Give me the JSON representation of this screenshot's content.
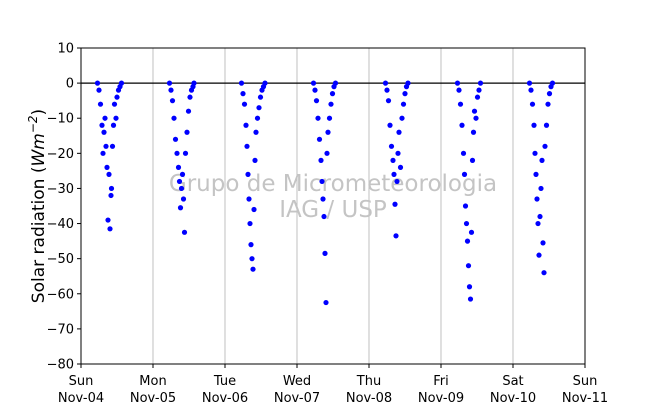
{
  "chart_data": {
    "type": "scatter",
    "ylabel_prefix": "Solar radiation (",
    "ylabel_unit_base": "Wm",
    "ylabel_unit_exp": "−2",
    "ylabel_suffix": ")",
    "watermark": [
      "Grupo de Micrometeorologia",
      "IAG / USP"
    ],
    "ylim": [
      -80,
      10
    ],
    "y_ticks": [
      10,
      0,
      -10,
      -20,
      -30,
      -40,
      -50,
      -60,
      -70,
      -80
    ],
    "y_tick_labels": [
      "10",
      "0",
      "−10",
      "−20",
      "−30",
      "−40",
      "−50",
      "−60",
      "−70",
      "−80"
    ],
    "xlim": [
      "2018-11-04",
      "2018-11-11"
    ],
    "x_ticks": [
      {
        "day": "Sun",
        "date": "Nov-04"
      },
      {
        "day": "Mon",
        "date": "Nov-05"
      },
      {
        "day": "Tue",
        "date": "Nov-06"
      },
      {
        "day": "Wed",
        "date": "Nov-07"
      },
      {
        "day": "Thu",
        "date": "Nov-08"
      },
      {
        "day": "Fri",
        "date": "Nov-09"
      },
      {
        "day": "Sat",
        "date": "Nov-10"
      },
      {
        "day": "Sun",
        "date": "Nov-11"
      }
    ],
    "x_grid": true,
    "zero_line": true,
    "marker_color": "#0000ff",
    "series": [
      {
        "points": [
          {
            "x": "2018-11-04 05:30",
            "y": 0
          },
          {
            "x": "2018-11-04 06:00",
            "y": -2
          },
          {
            "x": "2018-11-04 06:30",
            "y": -6
          },
          {
            "x": "2018-11-04 07:00",
            "y": -12
          },
          {
            "x": "2018-11-04 07:20",
            "y": -20
          },
          {
            "x": "2018-11-04 07:40",
            "y": -14
          },
          {
            "x": "2018-11-04 08:00",
            "y": -10
          },
          {
            "x": "2018-11-04 08:20",
            "y": -18
          },
          {
            "x": "2018-11-04 08:40",
            "y": -24
          },
          {
            "x": "2018-11-04 09:00",
            "y": -39
          },
          {
            "x": "2018-11-04 09:20",
            "y": -26
          },
          {
            "x": "2018-11-04 09:40",
            "y": -41.5
          },
          {
            "x": "2018-11-04 10:00",
            "y": -32
          },
          {
            "x": "2018-11-04 10:10",
            "y": -30
          },
          {
            "x": "2018-11-04 10:30",
            "y": -18
          },
          {
            "x": "2018-11-04 10:50",
            "y": -12
          },
          {
            "x": "2018-11-04 11:10",
            "y": -6
          },
          {
            "x": "2018-11-04 11:40",
            "y": -10
          },
          {
            "x": "2018-11-04 12:00",
            "y": -4
          },
          {
            "x": "2018-11-04 12:30",
            "y": -2
          },
          {
            "x": "2018-11-04 13:00",
            "y": -1
          },
          {
            "x": "2018-11-04 13:30",
            "y": 0
          },
          {
            "x": "2018-11-05 05:30",
            "y": 0
          },
          {
            "x": "2018-11-05 06:00",
            "y": -2
          },
          {
            "x": "2018-11-05 06:30",
            "y": -5
          },
          {
            "x": "2018-11-05 07:00",
            "y": -10
          },
          {
            "x": "2018-11-05 07:30",
            "y": -16
          },
          {
            "x": "2018-11-05 08:00",
            "y": -20
          },
          {
            "x": "2018-11-05 08:30",
            "y": -24
          },
          {
            "x": "2018-11-05 08:50",
            "y": -28
          },
          {
            "x": "2018-11-05 09:10",
            "y": -35.5
          },
          {
            "x": "2018-11-05 09:30",
            "y": -30
          },
          {
            "x": "2018-11-05 09:50",
            "y": -26
          },
          {
            "x": "2018-11-05 10:10",
            "y": -33
          },
          {
            "x": "2018-11-05 10:30",
            "y": -42.5
          },
          {
            "x": "2018-11-05 10:50",
            "y": -20
          },
          {
            "x": "2018-11-05 11:20",
            "y": -14
          },
          {
            "x": "2018-11-05 11:50",
            "y": -8
          },
          {
            "x": "2018-11-05 12:20",
            "y": -4
          },
          {
            "x": "2018-11-05 12:50",
            "y": -2
          },
          {
            "x": "2018-11-05 13:20",
            "y": -1
          },
          {
            "x": "2018-11-05 13:40",
            "y": 0
          },
          {
            "x": "2018-11-06 05:30",
            "y": 0
          },
          {
            "x": "2018-11-06 06:00",
            "y": -3
          },
          {
            "x": "2018-11-06 06:30",
            "y": -6
          },
          {
            "x": "2018-11-06 07:00",
            "y": -12
          },
          {
            "x": "2018-11-06 07:20",
            "y": -18
          },
          {
            "x": "2018-11-06 07:40",
            "y": -26
          },
          {
            "x": "2018-11-06 08:00",
            "y": -33
          },
          {
            "x": "2018-11-06 08:20",
            "y": -40
          },
          {
            "x": "2018-11-06 08:40",
            "y": -46
          },
          {
            "x": "2018-11-06 09:00",
            "y": -50
          },
          {
            "x": "2018-11-06 09:20",
            "y": -53
          },
          {
            "x": "2018-11-06 09:40",
            "y": -36
          },
          {
            "x": "2018-11-06 10:00",
            "y": -22
          },
          {
            "x": "2018-11-06 10:20",
            "y": -14
          },
          {
            "x": "2018-11-06 10:50",
            "y": -10
          },
          {
            "x": "2018-11-06 11:20",
            "y": -7
          },
          {
            "x": "2018-11-06 11:50",
            "y": -4
          },
          {
            "x": "2018-11-06 12:20",
            "y": -2
          },
          {
            "x": "2018-11-06 12:50",
            "y": -1
          },
          {
            "x": "2018-11-06 13:20",
            "y": 0
          },
          {
            "x": "2018-11-07 05:30",
            "y": 0
          },
          {
            "x": "2018-11-07 06:00",
            "y": -2
          },
          {
            "x": "2018-11-07 06:30",
            "y": -5
          },
          {
            "x": "2018-11-07 07:00",
            "y": -10
          },
          {
            "x": "2018-11-07 07:30",
            "y": -16
          },
          {
            "x": "2018-11-07 08:00",
            "y": -22
          },
          {
            "x": "2018-11-07 08:20",
            "y": -28
          },
          {
            "x": "2018-11-07 08:40",
            "y": -33
          },
          {
            "x": "2018-11-07 09:00",
            "y": -38
          },
          {
            "x": "2018-11-07 09:20",
            "y": -48.5
          },
          {
            "x": "2018-11-07 09:40",
            "y": -62.5
          },
          {
            "x": "2018-11-07 10:00",
            "y": -20
          },
          {
            "x": "2018-11-07 10:20",
            "y": -14
          },
          {
            "x": "2018-11-07 10:50",
            "y": -10
          },
          {
            "x": "2018-11-07 11:20",
            "y": -6
          },
          {
            "x": "2018-11-07 11:50",
            "y": -3
          },
          {
            "x": "2018-11-07 12:20",
            "y": -1
          },
          {
            "x": "2018-11-07 12:50",
            "y": 0
          },
          {
            "x": "2018-11-08 05:30",
            "y": 0
          },
          {
            "x": "2018-11-08 06:00",
            "y": -2
          },
          {
            "x": "2018-11-08 06:30",
            "y": -5
          },
          {
            "x": "2018-11-08 07:00",
            "y": -12
          },
          {
            "x": "2018-11-08 07:30",
            "y": -18
          },
          {
            "x": "2018-11-08 08:00",
            "y": -22
          },
          {
            "x": "2018-11-08 08:20",
            "y": -26
          },
          {
            "x": "2018-11-08 08:40",
            "y": -34.5
          },
          {
            "x": "2018-11-08 09:00",
            "y": -43.5
          },
          {
            "x": "2018-11-08 09:20",
            "y": -28
          },
          {
            "x": "2018-11-08 09:40",
            "y": -20
          },
          {
            "x": "2018-11-08 10:00",
            "y": -14
          },
          {
            "x": "2018-11-08 10:30",
            "y": -24
          },
          {
            "x": "2018-11-08 11:00",
            "y": -10
          },
          {
            "x": "2018-11-08 11:30",
            "y": -6
          },
          {
            "x": "2018-11-08 12:00",
            "y": -3
          },
          {
            "x": "2018-11-08 12:30",
            "y": -1
          },
          {
            "x": "2018-11-08 13:00",
            "y": 0
          },
          {
            "x": "2018-11-09 05:30",
            "y": 0
          },
          {
            "x": "2018-11-09 06:00",
            "y": -2
          },
          {
            "x": "2018-11-09 06:30",
            "y": -6
          },
          {
            "x": "2018-11-09 07:00",
            "y": -12
          },
          {
            "x": "2018-11-09 07:30",
            "y": -20
          },
          {
            "x": "2018-11-09 07:50",
            "y": -26
          },
          {
            "x": "2018-11-09 08:10",
            "y": -35
          },
          {
            "x": "2018-11-09 08:30",
            "y": -40
          },
          {
            "x": "2018-11-09 08:50",
            "y": -45
          },
          {
            "x": "2018-11-09 09:10",
            "y": -52
          },
          {
            "x": "2018-11-09 09:30",
            "y": -58
          },
          {
            "x": "2018-11-09 09:50",
            "y": -61.5
          },
          {
            "x": "2018-11-09 10:10",
            "y": -42.5
          },
          {
            "x": "2018-11-09 10:30",
            "y": -22
          },
          {
            "x": "2018-11-09 10:50",
            "y": -14
          },
          {
            "x": "2018-11-09 11:10",
            "y": -8
          },
          {
            "x": "2018-11-09 11:40",
            "y": -10
          },
          {
            "x": "2018-11-09 12:10",
            "y": -4
          },
          {
            "x": "2018-11-09 12:40",
            "y": -2
          },
          {
            "x": "2018-11-09 13:10",
            "y": 0
          },
          {
            "x": "2018-11-10 05:30",
            "y": 0
          },
          {
            "x": "2018-11-10 06:00",
            "y": -2
          },
          {
            "x": "2018-11-10 06:30",
            "y": -6
          },
          {
            "x": "2018-11-10 07:00",
            "y": -12
          },
          {
            "x": "2018-11-10 07:20",
            "y": -20
          },
          {
            "x": "2018-11-10 07:40",
            "y": -26
          },
          {
            "x": "2018-11-10 08:00",
            "y": -33
          },
          {
            "x": "2018-11-10 08:20",
            "y": -40
          },
          {
            "x": "2018-11-10 08:40",
            "y": -49
          },
          {
            "x": "2018-11-10 09:00",
            "y": -38
          },
          {
            "x": "2018-11-10 09:20",
            "y": -30
          },
          {
            "x": "2018-11-10 09:40",
            "y": -22
          },
          {
            "x": "2018-11-10 10:00",
            "y": -45.5
          },
          {
            "x": "2018-11-10 10:20",
            "y": -54
          },
          {
            "x": "2018-11-10 10:40",
            "y": -18
          },
          {
            "x": "2018-11-10 11:10",
            "y": -12
          },
          {
            "x": "2018-11-10 11:40",
            "y": -6
          },
          {
            "x": "2018-11-10 12:10",
            "y": -3
          },
          {
            "x": "2018-11-10 12:40",
            "y": -1
          },
          {
            "x": "2018-11-10 13:10",
            "y": 0
          }
        ]
      }
    ]
  }
}
